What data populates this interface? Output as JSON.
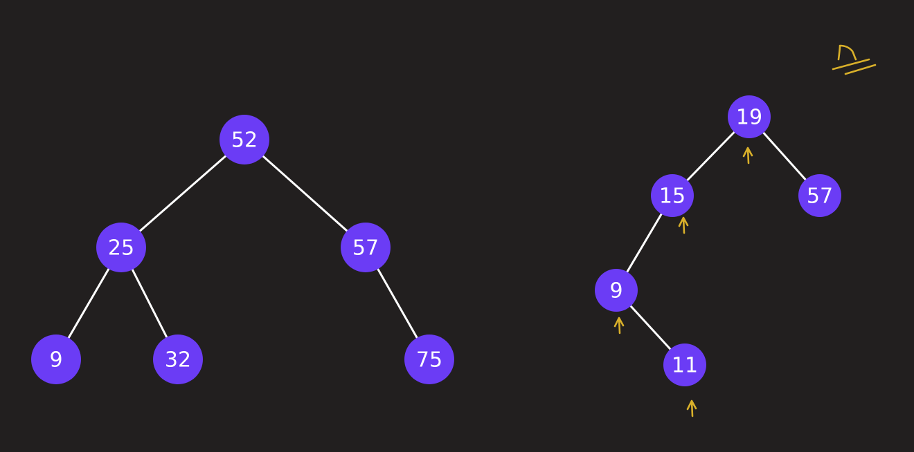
{
  "colors": {
    "background": "#221f1f",
    "node_fill": "#6b3cf5",
    "edge": "#ffffff",
    "annotation": "#d9b02a"
  },
  "trees": [
    {
      "name": "left-tree",
      "nodes": [
        {
          "id": "L52",
          "label": "52"
        },
        {
          "id": "L25",
          "label": "25"
        },
        {
          "id": "L57",
          "label": "57"
        },
        {
          "id": "L9",
          "label": "9"
        },
        {
          "id": "L32",
          "label": "32"
        },
        {
          "id": "L75",
          "label": "75"
        }
      ],
      "edges": [
        [
          "L52",
          "L25"
        ],
        [
          "L52",
          "L57"
        ],
        [
          "L25",
          "L9"
        ],
        [
          "L25",
          "L32"
        ],
        [
          "L57",
          "L75"
        ]
      ]
    },
    {
      "name": "right-tree",
      "nodes": [
        {
          "id": "R19",
          "label": "19"
        },
        {
          "id": "R15",
          "label": "15"
        },
        {
          "id": "R57",
          "label": "57"
        },
        {
          "id": "R9",
          "label": "9"
        },
        {
          "id": "R11",
          "label": "11"
        }
      ],
      "edges": [
        [
          "R19",
          "R15"
        ],
        [
          "R19",
          "R57"
        ],
        [
          "R15",
          "R9"
        ],
        [
          "R9",
          "R11"
        ]
      ]
    }
  ],
  "annotations": {
    "handwritten_label": "n",
    "arrow_marks_under": [
      "R19",
      "R15",
      "R9",
      "R11"
    ]
  }
}
